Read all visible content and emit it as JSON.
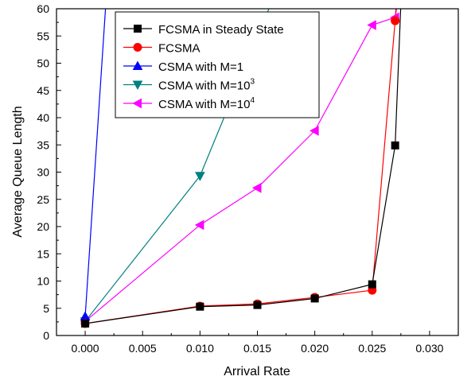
{
  "chart_data": {
    "type": "line",
    "title": "",
    "xlabel": "Arrival Rate",
    "ylabel": "Average Queue Length",
    "xlim": [
      -0.0025,
      0.0325
    ],
    "ylim": [
      0,
      60
    ],
    "x_ticks": [
      "0.000",
      "0.005",
      "0.010",
      "0.015",
      "0.020",
      "0.025",
      "0.030"
    ],
    "y_ticks": [
      "0",
      "5",
      "10",
      "15",
      "20",
      "25",
      "30",
      "35",
      "40",
      "45",
      "50",
      "55",
      "60"
    ],
    "grid": false,
    "legend_position": "top-right",
    "series": [
      {
        "name": "FCSMA in Steady State",
        "color": "#000000",
        "marker": "square",
        "x": [
          0.0,
          0.01,
          0.015,
          0.02,
          0.025,
          0.027,
          0.0275
        ],
        "y": [
          2.2,
          5.3,
          5.6,
          6.8,
          9.4,
          34.9,
          61
        ]
      },
      {
        "name": "FCSMA",
        "color": "#ff0000",
        "marker": "circle",
        "x": [
          0.0,
          0.01,
          0.015,
          0.02,
          0.025,
          0.027,
          0.0271
        ],
        "y": [
          2.2,
          5.4,
          5.8,
          7.0,
          8.3,
          57.8,
          61
        ]
      },
      {
        "name": "CSMA with M=1",
        "color": "#0000ff",
        "marker": "triangle-up",
        "x": [
          0.0,
          0.0018
        ],
        "y": [
          3.5,
          61
        ]
      },
      {
        "name": "CSMA with M=10",
        "name_sup": "3",
        "color": "#008080",
        "marker": "triangle-down",
        "x": [
          0.0,
          0.01,
          0.0162
        ],
        "y": [
          2.6,
          29.3,
          61
        ]
      },
      {
        "name": "CSMA with M=10",
        "name_sup": "4",
        "color": "#ff00ff",
        "marker": "triangle-left",
        "x": [
          0.0,
          0.01,
          0.015,
          0.02,
          0.025,
          0.027,
          0.0272
        ],
        "y": [
          2.6,
          20.3,
          27.1,
          37.6,
          57.0,
          58.4,
          61
        ]
      }
    ]
  }
}
